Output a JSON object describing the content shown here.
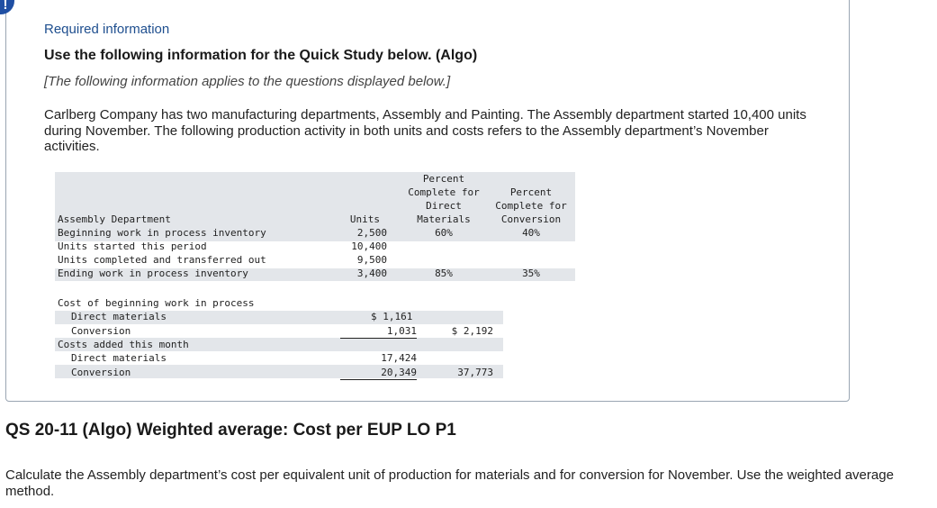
{
  "alert_icon": "!",
  "header": {
    "required": "Required information",
    "use": "Use the following information for the Quick Study below. (Algo)",
    "note": "[The following information applies to the questions displayed below.]",
    "paragraph": "Carlberg Company has two manufacturing departments, Assembly and Painting. The Assembly department started 10,400 units during November. The following production activity in both units and costs refers to the Assembly department’s November activities."
  },
  "table": {
    "headers": {
      "dept": "Assembly Department",
      "units": "Units",
      "mat_1": "Percent",
      "mat_2": "Complete for",
      "mat_3": "Direct",
      "mat_4": "Materials",
      "conv_1": "Percent",
      "conv_2": "Complete for",
      "conv_3": "Conversion"
    },
    "rows": [
      {
        "label": "Beginning work in process inventory",
        "units": "2,500",
        "mat": "60%",
        "conv": "40%"
      },
      {
        "label": "Units started this period",
        "units": "10,400",
        "mat": "",
        "conv": ""
      },
      {
        "label": "Units completed and transferred out",
        "units": "9,500",
        "mat": "",
        "conv": ""
      },
      {
        "label": "Ending work in process inventory",
        "units": "3,400",
        "mat": "85%",
        "conv": "35%"
      }
    ],
    "costs": {
      "beg_title": "Cost of beginning work in process",
      "beg_dm_label": "Direct materials",
      "beg_dm": "$ 1,161",
      "beg_conv_label": "Conversion",
      "beg_conv": "1,031",
      "beg_total": "$ 2,192",
      "added_title": "Costs added this month",
      "add_dm_label": "Direct materials",
      "add_dm": "17,424",
      "add_conv_label": "Conversion",
      "add_conv": "20,349",
      "add_total": "37,773"
    }
  },
  "question": {
    "title": "QS 20-11 (Algo) Weighted average: Cost per EUP LO P1",
    "instructions": "Calculate the Assembly department’s cost per equivalent unit of production for materials and for conversion for November. Use the weighted average method."
  }
}
